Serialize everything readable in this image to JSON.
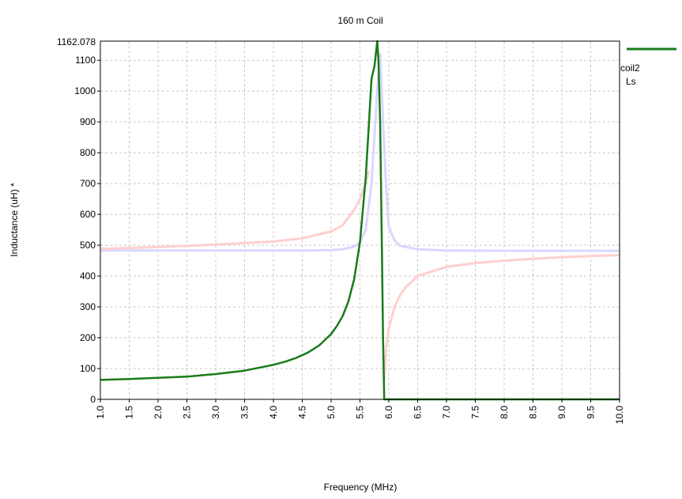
{
  "chart_data": {
    "type": "line",
    "title": "160 m Coil",
    "xlabel": "Frequency (MHz)",
    "ylabel": "Inductance (uH) *",
    "xlim": [
      1.0,
      10.0
    ],
    "ylim": [
      0,
      1162.078
    ],
    "ymax_label": "1162.078",
    "xticks": [
      "1.0",
      "1.5",
      "2.0",
      "2.5",
      "3.0",
      "3.5",
      "4.0",
      "4.5",
      "5.0",
      "5.5",
      "6.0",
      "6.5",
      "7.0",
      "7.5",
      "8.0",
      "8.5",
      "9.0",
      "9.5",
      "10.0"
    ],
    "yticks": [
      "0",
      "100",
      "200",
      "300",
      "400",
      "500",
      "600",
      "700",
      "800",
      "900",
      "1000",
      "1100"
    ],
    "grid": true,
    "legend_position": "right",
    "legend": {
      "name": "coil2",
      "sub": "Ls",
      "color": "#1a7a1a"
    },
    "series": [
      {
        "name": "coil2",
        "color": "#1a7a1a",
        "x": [
          1.0,
          1.5,
          2.0,
          2.5,
          3.0,
          3.5,
          4.0,
          4.2,
          4.4,
          4.6,
          4.8,
          5.0,
          5.1,
          5.2,
          5.3,
          5.4,
          5.5,
          5.6,
          5.65,
          5.7,
          5.75,
          5.8,
          5.82,
          5.85,
          5.88,
          5.9,
          5.92,
          6.0,
          6.5,
          7.0,
          8.0,
          9.0,
          10.0
        ],
        "y": [
          63,
          66,
          70,
          74,
          82,
          93,
          112,
          122,
          135,
          152,
          176,
          212,
          238,
          270,
          318,
          390,
          510,
          720,
          880,
          1040,
          1080,
          1162,
          1100,
          900,
          500,
          200,
          0,
          0,
          0,
          0,
          0,
          0,
          0
        ]
      },
      {
        "name": "",
        "color": "#ffcfcf",
        "x": [
          1.0,
          2.0,
          3.0,
          4.0,
          4.5,
          5.0,
          5.2,
          5.4,
          5.5,
          5.6,
          5.65
        ],
        "y": [
          488,
          494,
          502,
          512,
          522,
          545,
          565,
          615,
          650,
          700,
          740
        ]
      },
      {
        "name": "",
        "color": "#ffcfcf",
        "x": [
          5.92,
          5.95,
          6.0,
          6.1,
          6.2,
          6.3,
          6.5,
          7.0,
          7.5,
          8.0,
          8.5,
          9.0,
          9.5,
          10.0
        ],
        "y": [
          60,
          160,
          230,
          300,
          340,
          365,
          400,
          430,
          442,
          450,
          456,
          461,
          465,
          468
        ]
      },
      {
        "name": "",
        "color": "#d8d8ff",
        "x": [
          1.0,
          3.0,
          4.0,
          4.5,
          5.0,
          5.2,
          5.4,
          5.5,
          5.6,
          5.7,
          5.8,
          5.85,
          5.9,
          5.95,
          6.0,
          6.1,
          6.2,
          6.5,
          7.0,
          8.0,
          9.0,
          10.0
        ],
        "y": [
          483,
          483,
          483,
          483,
          484,
          487,
          495,
          510,
          550,
          700,
          1000,
          1120,
          900,
          700,
          560,
          515,
          498,
          487,
          483,
          482,
          482,
          482
        ]
      }
    ]
  }
}
